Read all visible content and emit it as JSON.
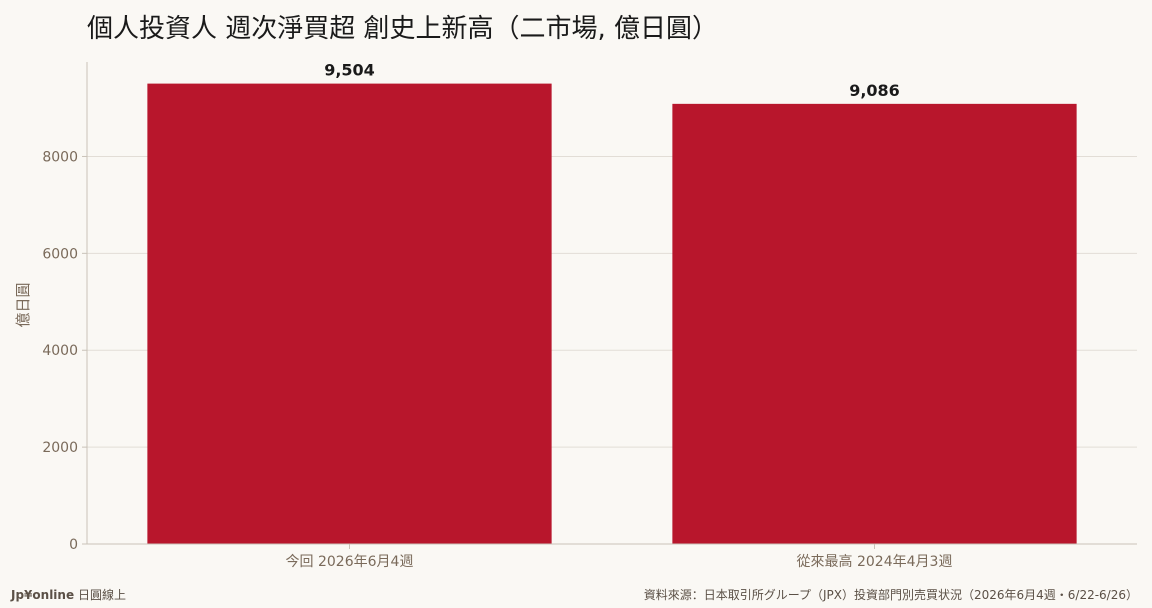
{
  "colors": {
    "bar": "#b8162c",
    "background": "#faf8f4",
    "grid": "#e2ddd6",
    "axis": "#c9c2b8",
    "tick_text": "#7a6a5a"
  },
  "footer": {
    "brand": "Jp¥online",
    "brand_suffix": "日圓線上",
    "source": "資料來源：日本取引所グループ（JPX）投資部門別売買状況（2026年6月4週・6/22-6/26）"
  },
  "chart_data": {
    "type": "bar",
    "title": "個人投資人 週次淨買超 創史上新高（二市場, 億日圓）",
    "ylabel": "億日圓",
    "xlabel": "",
    "categories": [
      "今回 2026年6月4週",
      "從來最高 2024年4月3週"
    ],
    "values": [
      9504,
      9086
    ],
    "value_labels": [
      "9,504",
      "9,086"
    ],
    "yticks": [
      0,
      2000,
      4000,
      6000,
      8000
    ],
    "ylim": [
      0,
      9950
    ],
    "grid": true,
    "legend": "none"
  }
}
